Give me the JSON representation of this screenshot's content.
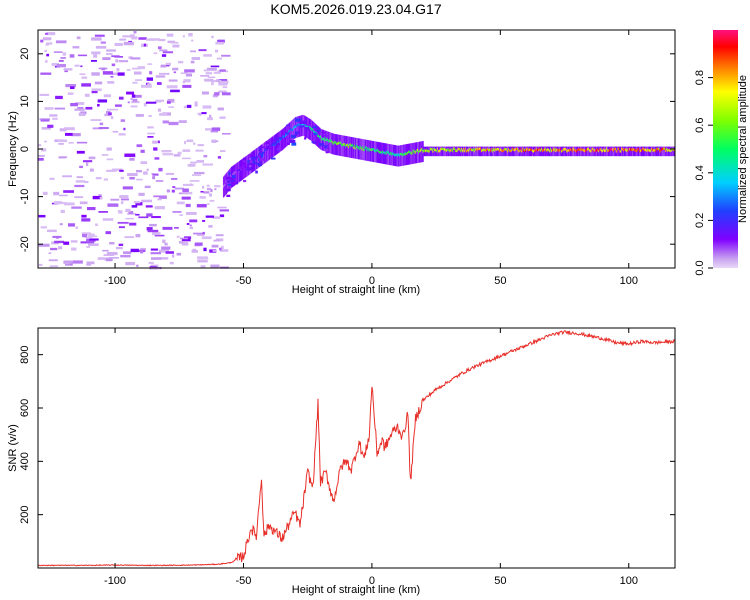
{
  "figure_title": "KOM5.2026.019.23.04.G17",
  "chart_data": [
    {
      "type": "heatmap",
      "name": "spectrogram",
      "xlabel": "Height of straight line (km)",
      "ylabel": "Frequency (Hz)",
      "xlim": [
        -130,
        118
      ],
      "ylim": [
        -25,
        25
      ],
      "xticks": [
        -100,
        -50,
        0,
        50,
        100
      ],
      "yticks": [
        -20,
        -10,
        0,
        10,
        20
      ],
      "xtick_labels": [
        "-100",
        "-50",
        "0",
        "50",
        "100"
      ],
      "ytick_labels": [
        "-20",
        "-10",
        "0",
        "10",
        "20"
      ],
      "noise_region_x": [
        -130,
        -58
      ],
      "signal_ridge": {
        "x": [
          -58,
          -55,
          -50,
          -45,
          -40,
          -35,
          -30,
          -27,
          -24,
          -20,
          -15,
          -10,
          -5,
          0,
          5,
          10,
          15,
          20,
          30,
          40,
          50,
          60,
          70,
          80,
          90,
          100,
          110,
          118
        ],
        "frequency": [
          -8,
          -6,
          -4,
          -2,
          0,
          2,
          4.5,
          5,
          4,
          2,
          1,
          0.5,
          0,
          -0.5,
          -1,
          -1.5,
          -1,
          -0.5,
          -0.5,
          -0.5,
          -0.5,
          -0.5,
          -0.5,
          -0.5,
          -0.5,
          -0.5,
          -0.5,
          -0.5
        ],
        "amplitude": [
          0.05,
          0.08,
          0.12,
          0.18,
          0.25,
          0.3,
          0.35,
          0.4,
          0.45,
          0.55,
          0.6,
          0.65,
          0.6,
          0.55,
          0.5,
          0.5,
          0.6,
          0.7,
          0.75,
          0.8,
          0.82,
          0.85,
          0.88,
          0.9,
          0.92,
          0.9,
          0.88,
          0.85
        ]
      },
      "colorbar": {
        "label": "Normalized spectral amplitude",
        "range": [
          0,
          1
        ],
        "ticks": [
          "0.0",
          "0.2",
          "0.4",
          "0.6",
          "0.8"
        ],
        "tick_values": [
          0,
          0.2,
          0.4,
          0.6,
          0.8
        ],
        "colormap": "rainbow"
      }
    },
    {
      "type": "line",
      "name": "snr",
      "xlabel": "Height of straight line (km)",
      "ylabel": "SNR (v/v)",
      "xlim": [
        -130,
        118
      ],
      "ylim": [
        0,
        900
      ],
      "xticks": [
        -100,
        -50,
        0,
        50,
        100
      ],
      "yticks": [
        200,
        400,
        600,
        800
      ],
      "xtick_labels": [
        "-100",
        "-50",
        "0",
        "50",
        "100"
      ],
      "ytick_labels": [
        "200",
        "400",
        "600",
        "800"
      ],
      "series": [
        {
          "name": "SNR",
          "color": "#e8302a",
          "x": [
            -130,
            -120,
            -110,
            -100,
            -90,
            -80,
            -70,
            -60,
            -55,
            -50,
            -47,
            -45,
            -43,
            -42,
            -40,
            -35,
            -30,
            -28,
            -25,
            -23,
            -21,
            -20,
            -18,
            -15,
            -12,
            -10,
            -8,
            -5,
            -3,
            -1,
            0,
            2,
            4,
            5,
            8,
            10,
            12,
            14,
            15,
            17,
            20,
            25,
            30,
            35,
            40,
            45,
            50,
            55,
            60,
            65,
            70,
            75,
            80,
            85,
            90,
            95,
            100,
            105,
            110,
            115,
            118
          ],
          "y": [
            10,
            10,
            10,
            11,
            10,
            10,
            11,
            14,
            20,
            45,
            150,
            120,
            340,
            120,
            160,
            110,
            210,
            160,
            360,
            300,
            615,
            320,
            360,
            250,
            380,
            400,
            370,
            470,
            410,
            500,
            690,
            430,
            480,
            450,
            510,
            530,
            490,
            580,
            320,
            560,
            630,
            670,
            700,
            730,
            755,
            775,
            795,
            815,
            835,
            855,
            875,
            885,
            880,
            870,
            860,
            845,
            840,
            850,
            845,
            848,
            850
          ]
        }
      ]
    }
  ]
}
